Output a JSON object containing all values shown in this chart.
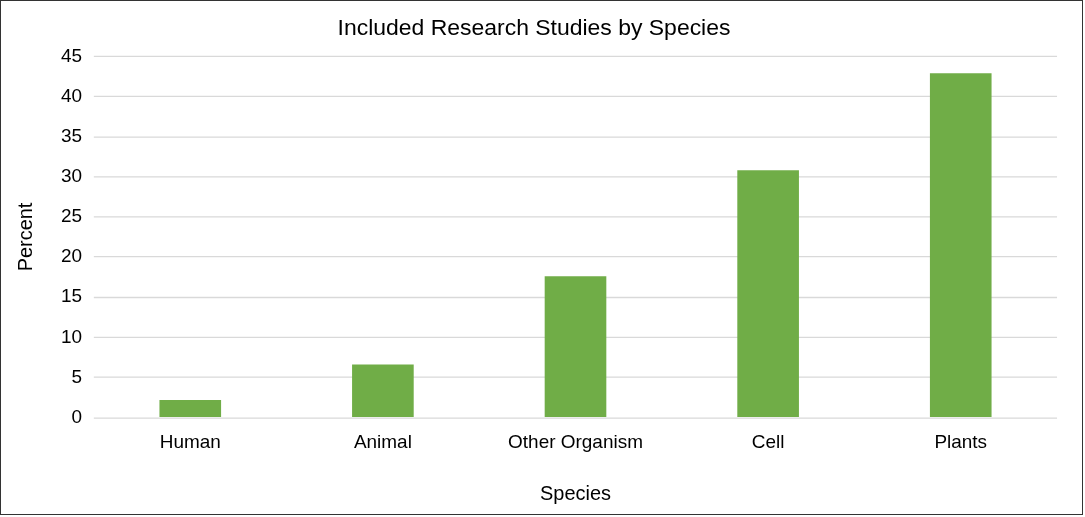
{
  "chart_data": {
    "type": "bar",
    "title": "Included Research Studies by Species",
    "xlabel": "Species",
    "ylabel": "Percent",
    "categories": [
      "Human",
      "Animal",
      "Other Organism",
      "Cell",
      "Plants"
    ],
    "values": [
      2.2,
      6.6,
      17.6,
      30.8,
      42.9
    ],
    "color": "#70ad47",
    "ylim": [
      0,
      45
    ],
    "yticks": [
      0,
      5,
      10,
      15,
      20,
      25,
      30,
      35,
      40,
      45
    ],
    "grid": "y"
  }
}
